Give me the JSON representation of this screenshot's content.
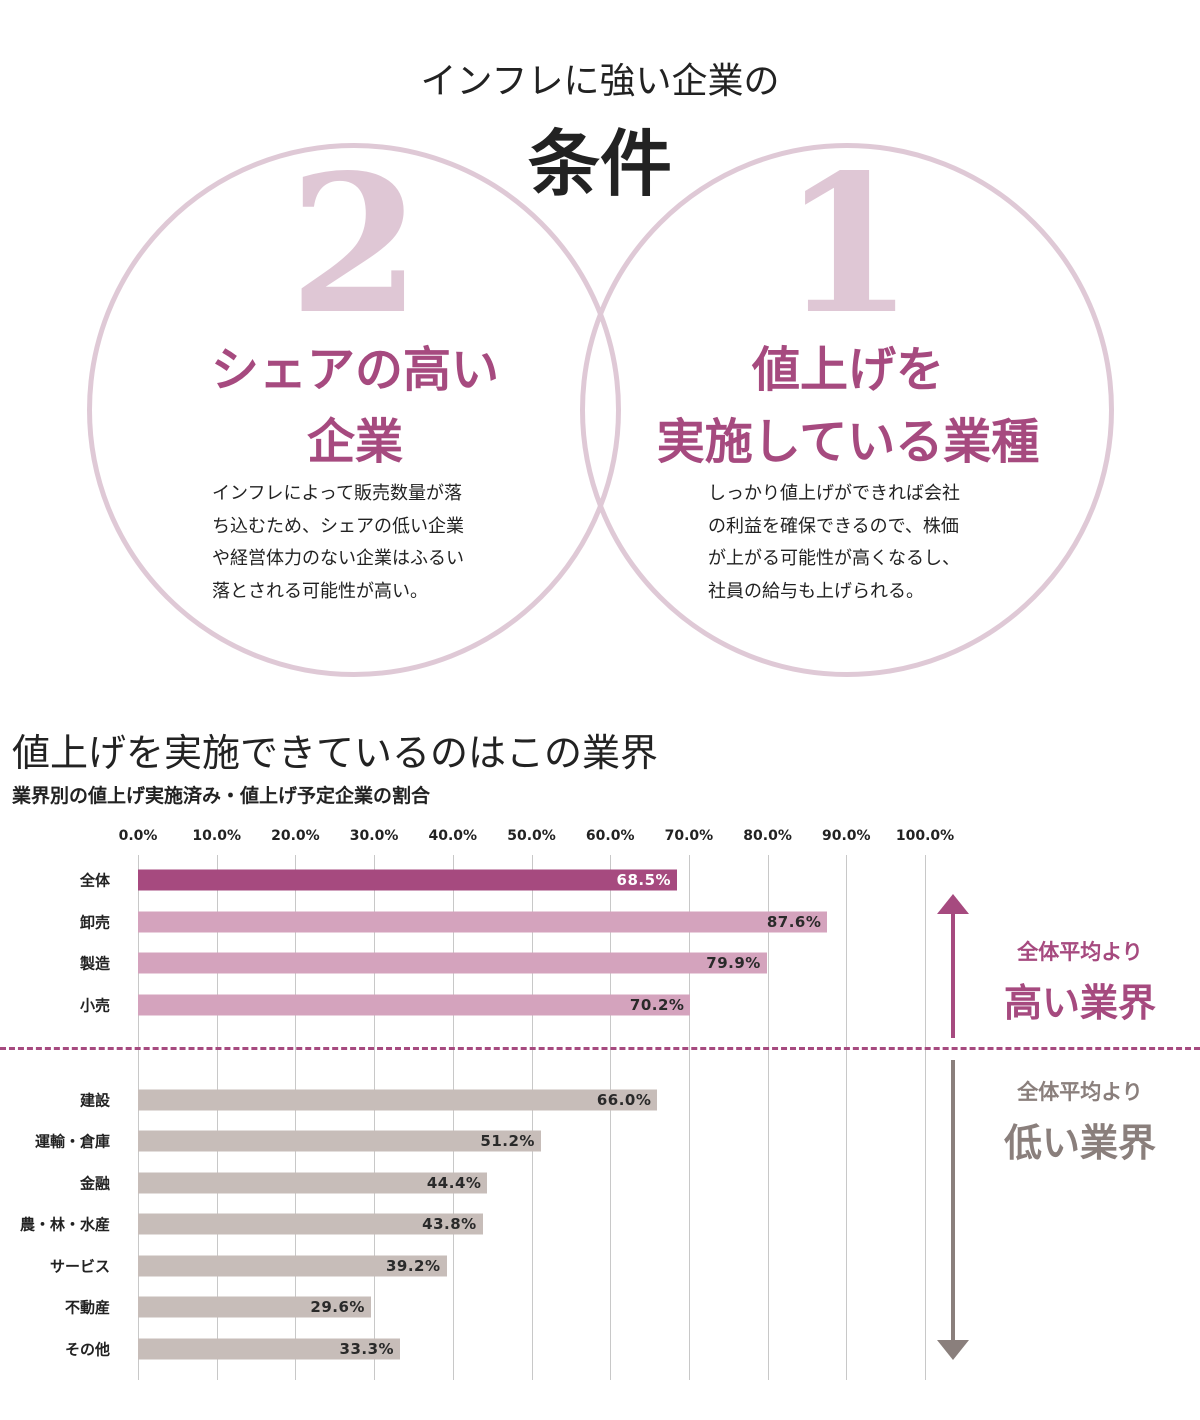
{
  "header": {
    "line1": "インフレに強い企業の",
    "line2": "条件"
  },
  "conditions": [
    {
      "number": "2",
      "heading_lines": [
        "シェアの高い",
        "企業"
      ],
      "body_lines": [
        "インフレによって販売数量が落",
        "ち込むため、シェアの低い企業",
        "や経営体力のない企業はふるい",
        "落とされる可能性が高い。"
      ]
    },
    {
      "number": "1",
      "heading_lines": [
        "値上げを",
        "実施している業種"
      ],
      "body_lines": [
        "しっかり値上げができれば会社",
        "の利益を確保できるので、株価",
        "が上がる可能性が高くなるし、",
        "社員の給与も上げられる。"
      ]
    }
  ],
  "colors": {
    "accent": "#a64a7f",
    "circle": "#dfc9d6",
    "high_bar": "#d4a3bd",
    "low_bar": "#c7bdb9",
    "low_text": "#8a7f7c"
  },
  "chart_data": {
    "type": "bar",
    "orientation": "horizontal",
    "title": "値上げを実施できているのはこの業界",
    "subtitle": "業界別の値上げ実施済み・値上げ予定企業の割合",
    "xlim": [
      0,
      100
    ],
    "ticks": [
      "0.0%",
      "10.0%",
      "20.0%",
      "30.0%",
      "40.0%",
      "50.0%",
      "60.0%",
      "70.0%",
      "80.0%",
      "90.0%",
      "100.0%"
    ],
    "grid": true,
    "categories": [
      "全体",
      "卸売",
      "製造",
      "小売",
      "建設",
      "運輸・倉庫",
      "金融",
      "農・林・水産",
      "サービス",
      "不動産",
      "その他"
    ],
    "values": [
      68.5,
      87.6,
      79.9,
      70.2,
      66.0,
      51.2,
      44.4,
      43.8,
      39.2,
      29.6,
      33.3
    ],
    "labels": [
      "68.5%",
      "87.6%",
      "79.9%",
      "70.2%",
      "66.0%",
      "51.2%",
      "44.4%",
      "43.8%",
      "39.2%",
      "29.6%",
      "33.3%"
    ],
    "groups": [
      {
        "line1": "全体平均より",
        "line2": "高い業界",
        "members": [
          "全体",
          "卸売",
          "製造",
          "小売"
        ]
      },
      {
        "line1": "全体平均より",
        "line2": "低い業界",
        "members": [
          "建設",
          "運輸・倉庫",
          "金融",
          "農・林・水産",
          "サービス",
          "不動産",
          "その他"
        ]
      }
    ]
  }
}
